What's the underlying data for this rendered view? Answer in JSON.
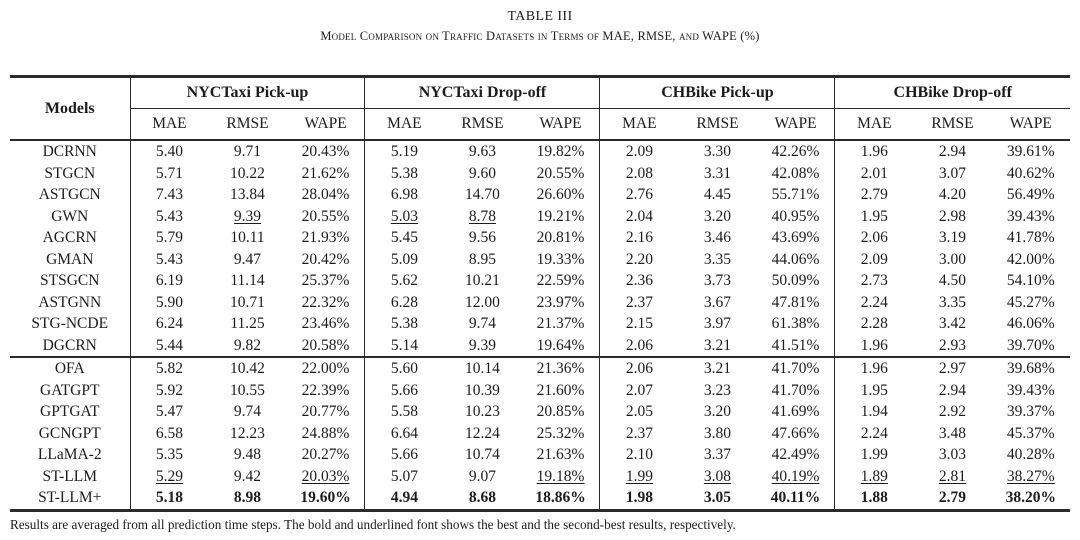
{
  "page": {
    "title": "TABLE III",
    "caption": "Model Comparison on Traffic Datasets in Terms of MAE, RMSE, and WAPE (%)",
    "footnote": "Results are averaged from all prediction time steps. The bold and underlined font shows the best and the second-best results, respectively."
  },
  "chart_data": {
    "type": "table",
    "models_header": "Models",
    "groups": [
      {
        "label": "NYCTaxi Pick-up",
        "metrics": [
          "MAE",
          "RMSE",
          "WAPE"
        ]
      },
      {
        "label": "NYCTaxi Drop-off",
        "metrics": [
          "MAE",
          "RMSE",
          "WAPE"
        ]
      },
      {
        "label": "CHBike Pick-up",
        "metrics": [
          "MAE",
          "RMSE",
          "WAPE"
        ]
      },
      {
        "label": "CHBike Drop-off",
        "metrics": [
          "MAE",
          "RMSE",
          "WAPE"
        ]
      }
    ],
    "sections": [
      {
        "rows": [
          {
            "model": "DCRNN",
            "values": [
              "5.40",
              "9.71",
              "20.43%",
              "5.19",
              "9.63",
              "19.82%",
              "2.09",
              "3.30",
              "42.26%",
              "1.96",
              "2.94",
              "39.61%"
            ]
          },
          {
            "model": "STGCN",
            "values": [
              "5.71",
              "10.22",
              "21.62%",
              "5.38",
              "9.60",
              "20.55%",
              "2.08",
              "3.31",
              "42.08%",
              "2.01",
              "3.07",
              "40.62%"
            ]
          },
          {
            "model": "ASTGCN",
            "values": [
              "7.43",
              "13.84",
              "28.04%",
              "6.98",
              "14.70",
              "26.60%",
              "2.76",
              "4.45",
              "55.71%",
              "2.79",
              "4.20",
              "56.49%"
            ]
          },
          {
            "model": "GWN",
            "values": [
              "5.43",
              "9.39",
              "20.55%",
              "5.03",
              "8.78",
              "19.21%",
              "2.04",
              "3.20",
              "40.95%",
              "1.95",
              "2.98",
              "39.43%"
            ],
            "underline": [
              1,
              3,
              4
            ]
          },
          {
            "model": "AGCRN",
            "values": [
              "5.79",
              "10.11",
              "21.93%",
              "5.45",
              "9.56",
              "20.81%",
              "2.16",
              "3.46",
              "43.69%",
              "2.06",
              "3.19",
              "41.78%"
            ]
          },
          {
            "model": "GMAN",
            "values": [
              "5.43",
              "9.47",
              "20.42%",
              "5.09",
              "8.95",
              "19.33%",
              "2.20",
              "3.35",
              "44.06%",
              "2.09",
              "3.00",
              "42.00%"
            ]
          },
          {
            "model": "STSGCN",
            "values": [
              "6.19",
              "11.14",
              "25.37%",
              "5.62",
              "10.21",
              "22.59%",
              "2.36",
              "3.73",
              "50.09%",
              "2.73",
              "4.50",
              "54.10%"
            ]
          },
          {
            "model": "ASTGNN",
            "values": [
              "5.90",
              "10.71",
              "22.32%",
              "6.28",
              "12.00",
              "23.97%",
              "2.37",
              "3.67",
              "47.81%",
              "2.24",
              "3.35",
              "45.27%"
            ]
          },
          {
            "model": "STG-NCDE",
            "values": [
              "6.24",
              "11.25",
              "23.46%",
              "5.38",
              "9.74",
              "21.37%",
              "2.15",
              "3.97",
              "61.38%",
              "2.28",
              "3.42",
              "46.06%"
            ]
          },
          {
            "model": "DGCRN",
            "values": [
              "5.44",
              "9.82",
              "20.58%",
              "5.14",
              "9.39",
              "19.64%",
              "2.06",
              "3.21",
              "41.51%",
              "1.96",
              "2.93",
              "39.70%"
            ]
          }
        ]
      },
      {
        "rows": [
          {
            "model": "OFA",
            "values": [
              "5.82",
              "10.42",
              "22.00%",
              "5.60",
              "10.14",
              "21.36%",
              "2.06",
              "3.21",
              "41.70%",
              "1.96",
              "2.97",
              "39.68%"
            ]
          },
          {
            "model": "GATGPT",
            "values": [
              "5.92",
              "10.55",
              "22.39%",
              "5.66",
              "10.39",
              "21.60%",
              "2.07",
              "3.23",
              "41.70%",
              "1.95",
              "2.94",
              "39.43%"
            ]
          },
          {
            "model": "GPTGAT",
            "values": [
              "5.47",
              "9.74",
              "20.77%",
              "5.58",
              "10.23",
              "20.85%",
              "2.05",
              "3.20",
              "41.69%",
              "1.94",
              "2.92",
              "39.37%"
            ]
          },
          {
            "model": "GCNGPT",
            "values": [
              "6.58",
              "12.23",
              "24.88%",
              "6.64",
              "12.24",
              "25.32%",
              "2.37",
              "3.80",
              "47.66%",
              "2.24",
              "3.48",
              "45.37%"
            ]
          },
          {
            "model": "LLaMA-2",
            "values": [
              "5.35",
              "9.48",
              "20.27%",
              "5.66",
              "10.74",
              "21.63%",
              "2.10",
              "3.37",
              "42.49%",
              "1.99",
              "3.03",
              "40.28%"
            ]
          },
          {
            "model": "ST-LLM",
            "values": [
              "5.29",
              "9.42",
              "20.03%",
              "5.07",
              "9.07",
              "19.18%",
              "1.99",
              "3.08",
              "40.19%",
              "1.89",
              "2.81",
              "38.27%"
            ],
            "underline": [
              0,
              2,
              5,
              6,
              7,
              8,
              9,
              10,
              11
            ]
          },
          {
            "model": "ST-LLM+",
            "values": [
              "5.18",
              "8.98",
              "19.60%",
              "4.94",
              "8.68",
              "18.86%",
              "1.98",
              "3.05",
              "40.11%",
              "1.88",
              "2.79",
              "38.20%"
            ],
            "bold": true
          }
        ]
      }
    ]
  }
}
